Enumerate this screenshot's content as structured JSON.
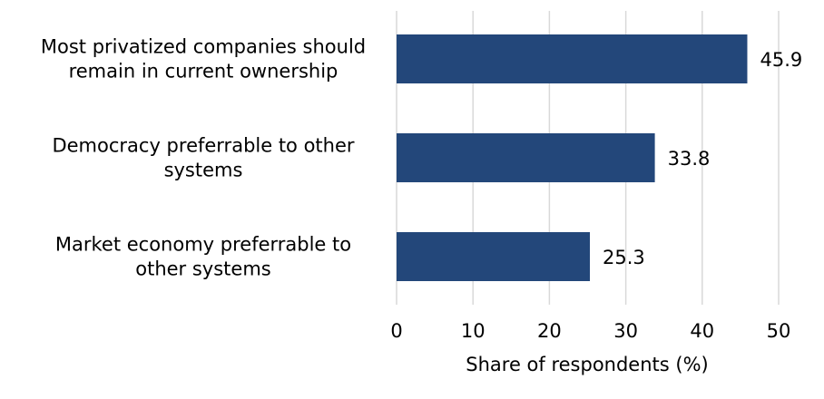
{
  "chart_data": {
    "type": "bar",
    "orientation": "horizontal",
    "categories": [
      [
        "Most privatized companies should",
        "remain in current ownership"
      ],
      [
        "Democracy preferrable to other",
        "systems"
      ],
      [
        "Market economy preferrable to",
        "other systems"
      ]
    ],
    "values": [
      45.9,
      33.8,
      25.3
    ],
    "value_labels": [
      "45.9",
      "33.8",
      "25.3"
    ],
    "xlabel": "Share of respondents (%)",
    "xlim": [
      0,
      50
    ],
    "xticks": [
      "0",
      "10",
      "20",
      "30",
      "40",
      "50"
    ],
    "grid": "vertical",
    "legend": "none",
    "bar_color": "#23477a",
    "grid_color": "#d9d9d9"
  }
}
